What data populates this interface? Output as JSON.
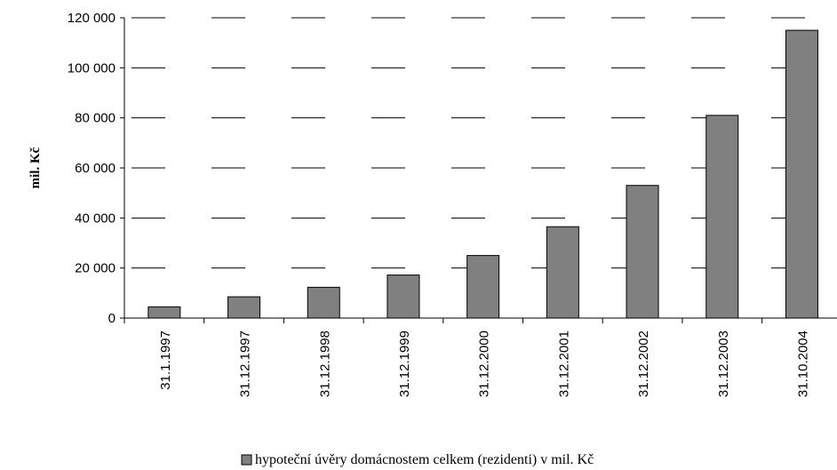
{
  "chart_data": {
    "type": "bar",
    "categories": [
      "31.1.1997",
      "31.12.1997",
      "31.12.1998",
      "31.12.1999",
      "31.12.2000",
      "31.12.2001",
      "31.12.2002",
      "31.12.2003",
      "31.10.2004"
    ],
    "series": [
      {
        "name": "hypoteční úvěry domácnostem celkem (rezidenti) v mil. Kč",
        "values": [
          4500,
          8500,
          12300,
          17200,
          25000,
          36500,
          53000,
          81000,
          115000
        ],
        "color": "#808080"
      }
    ],
    "ylabel": "mil. Kč",
    "ylim": [
      0,
      120000
    ],
    "yticks": [
      0,
      20000,
      40000,
      60000,
      80000,
      100000,
      120000
    ],
    "ytick_labels": [
      "0",
      "20 000",
      "40 000",
      "60 000",
      "80 000",
      "100 000",
      "120 000"
    ],
    "grid": "dashed horizontal",
    "legend_position": "bottom"
  }
}
